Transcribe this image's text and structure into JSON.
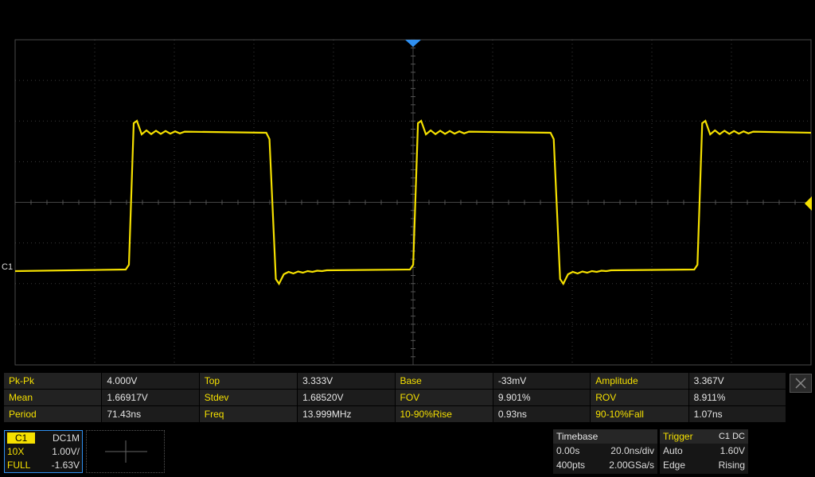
{
  "colors": {
    "trace": "#f5e000",
    "grid": "#555555",
    "marker": "#2f8ff0",
    "background": "#000000"
  },
  "channel_label": "C1",
  "waveform": {
    "type": "square",
    "channel": "C1",
    "period_ns": 71.43,
    "high_v": 3.333,
    "low_v": -0.033
  },
  "measurements": [
    [
      {
        "name": "Pk-Pk",
        "value": "4.000V"
      },
      {
        "name": "Top",
        "value": "3.333V"
      },
      {
        "name": "Base",
        "value": "-33mV"
      },
      {
        "name": "Amplitude",
        "value": "3.367V"
      }
    ],
    [
      {
        "name": "Mean",
        "value": "1.66917V"
      },
      {
        "name": "Stdev",
        "value": "1.68520V"
      },
      {
        "name": "FOV",
        "value": "9.901%"
      },
      {
        "name": "ROV",
        "value": "8.911%"
      }
    ],
    [
      {
        "name": "Period",
        "value": "71.43ns"
      },
      {
        "name": "Freq",
        "value": "13.999MHz"
      },
      {
        "name": "10-90%Rise",
        "value": "0.93ns"
      },
      {
        "name": "90-10%Fall",
        "value": "1.07ns"
      }
    ]
  ],
  "channel_box": {
    "name": "C1",
    "coupling": "DC1M",
    "probe": "10X",
    "scale": "1.00V/",
    "bandwidth": "FULL",
    "offset": "-1.63V"
  },
  "timebase": {
    "title": "Timebase",
    "delay": "0.00s",
    "scale": "20.0ns/div",
    "points": "400pts",
    "rate": "2.00GSa/s"
  },
  "trigger": {
    "title": "Trigger",
    "source": "C1 DC",
    "mode": "Auto",
    "level": "1.60V",
    "type": "Edge",
    "slope": "Rising"
  }
}
